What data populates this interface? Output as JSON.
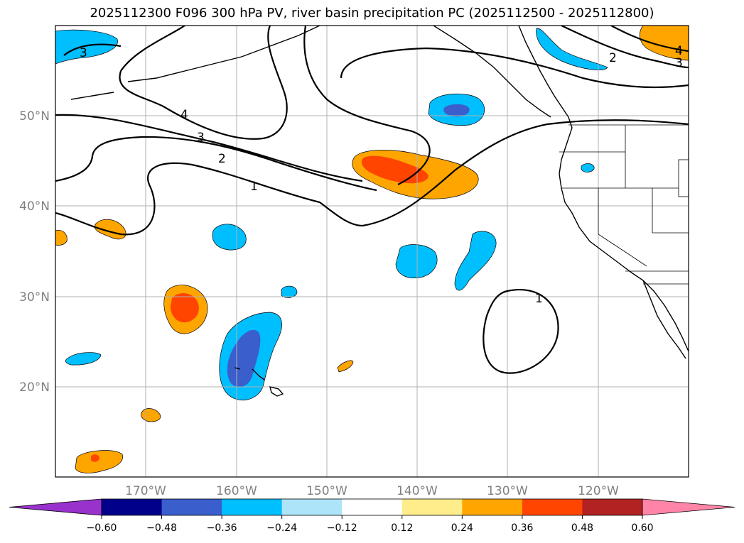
{
  "title": "2025112300 F096 300 hPa PV, river basin precipitation PC (2025112500 - 2025112800)",
  "map": {
    "lat_labels": [
      "50°N",
      "40°N",
      "30°N",
      "20°N"
    ],
    "lon_labels": [
      "170°W",
      "160°W",
      "150°W",
      "140°W",
      "130°W",
      "120°W"
    ],
    "contour_labels": [
      "3",
      "4",
      "3",
      "2",
      "1",
      "2",
      "4",
      "3",
      "1"
    ]
  },
  "colorbar": {
    "ticks": [
      "−0.60",
      "−0.48",
      "−0.36",
      "−0.24",
      "−0.12",
      "0.12",
      "0.24",
      "0.36",
      "0.48",
      "0.60"
    ],
    "colors": [
      "#9932CC",
      "#00008B",
      "#3A5FCD",
      "#00BFFF",
      "#ADE4FA",
      "#FFFFFF",
      "#FFEC8B",
      "#FFA500",
      "#FF4500",
      "#B22222",
      "#FF85A8"
    ]
  }
}
